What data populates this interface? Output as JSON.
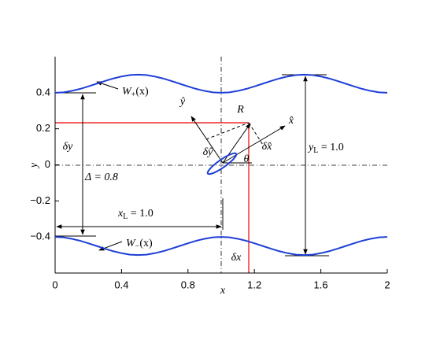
{
  "chart_data": {
    "type": "line",
    "xlabel": "x",
    "ylabel": "y",
    "x": [
      0,
      0.05,
      0.1,
      0.15,
      0.2,
      0.25,
      0.3,
      0.35,
      0.4,
      0.45,
      0.5,
      0.55,
      0.6,
      0.65,
      0.7,
      0.75,
      0.8,
      0.85,
      0.9,
      0.95,
      1,
      1.05,
      1.1,
      1.15,
      1.2,
      1.25,
      1.3,
      1.35,
      1.4,
      1.45,
      1.5,
      1.55,
      1.6,
      1.65,
      1.7,
      1.75,
      1.8,
      1.85,
      1.9,
      1.95,
      2
    ],
    "series": [
      {
        "color": "#1f3fd6",
        "values": [
          0.4,
          0.402,
          0.41,
          0.421,
          0.435,
          0.45,
          0.465,
          0.479,
          0.49,
          0.498,
          0.5,
          0.498,
          0.49,
          0.479,
          0.465,
          0.45,
          0.435,
          0.421,
          0.41,
          0.402,
          0.4,
          0.402,
          0.41,
          0.421,
          0.435,
          0.45,
          0.465,
          0.479,
          0.49,
          0.498,
          0.5,
          0.498,
          0.49,
          0.479,
          0.465,
          0.45,
          0.435,
          0.421,
          0.41,
          0.402,
          0.4
        ]
      },
      {
        "color": "#1f3fd6",
        "values": [
          -0.4,
          -0.402,
          -0.41,
          -0.421,
          -0.435,
          -0.45,
          -0.465,
          -0.479,
          -0.49,
          -0.498,
          -0.5,
          -0.498,
          -0.49,
          -0.479,
          -0.465,
          -0.45,
          -0.435,
          -0.421,
          -0.41,
          -0.402,
          -0.4,
          -0.402,
          -0.41,
          -0.421,
          -0.435,
          -0.45,
          -0.465,
          -0.479,
          -0.49,
          -0.498,
          -0.5,
          -0.498,
          -0.49,
          -0.479,
          -0.465,
          -0.45,
          -0.435,
          -0.421,
          -0.41,
          -0.402,
          -0.4
        ]
      }
    ],
    "xlim": [
      0,
      2
    ],
    "ylim": [
      -0.6,
      0.6
    ],
    "xticks": [
      0,
      0.4,
      0.8,
      1.2,
      1.6,
      2
    ],
    "yticks": [
      {
        "value": -0.4,
        "label": "−0.4"
      },
      {
        "value": -0.2,
        "label": "−0.2"
      },
      0,
      0.2,
      0.4
    ],
    "annotations": [
      {
        "text": "W",
        "sub": "+",
        "tail": "(x)"
      },
      {
        "text": "W",
        "sub": "−",
        "tail": "(x)"
      },
      {
        "text": "ŷ"
      },
      {
        "text": "x̂"
      },
      {
        "text": "R⃗"
      },
      {
        "text": "δŷ"
      },
      {
        "text": "δx̂"
      },
      {
        "text": "θ"
      },
      {
        "text": "δy"
      },
      {
        "text": "Δ = 0.8"
      },
      {
        "text": "x",
        "sub": "L",
        "tail": " = 1.0"
      },
      {
        "text": "y",
        "sub": "L",
        "tail": " = 1.0"
      },
      {
        "text": "δx"
      }
    ]
  }
}
